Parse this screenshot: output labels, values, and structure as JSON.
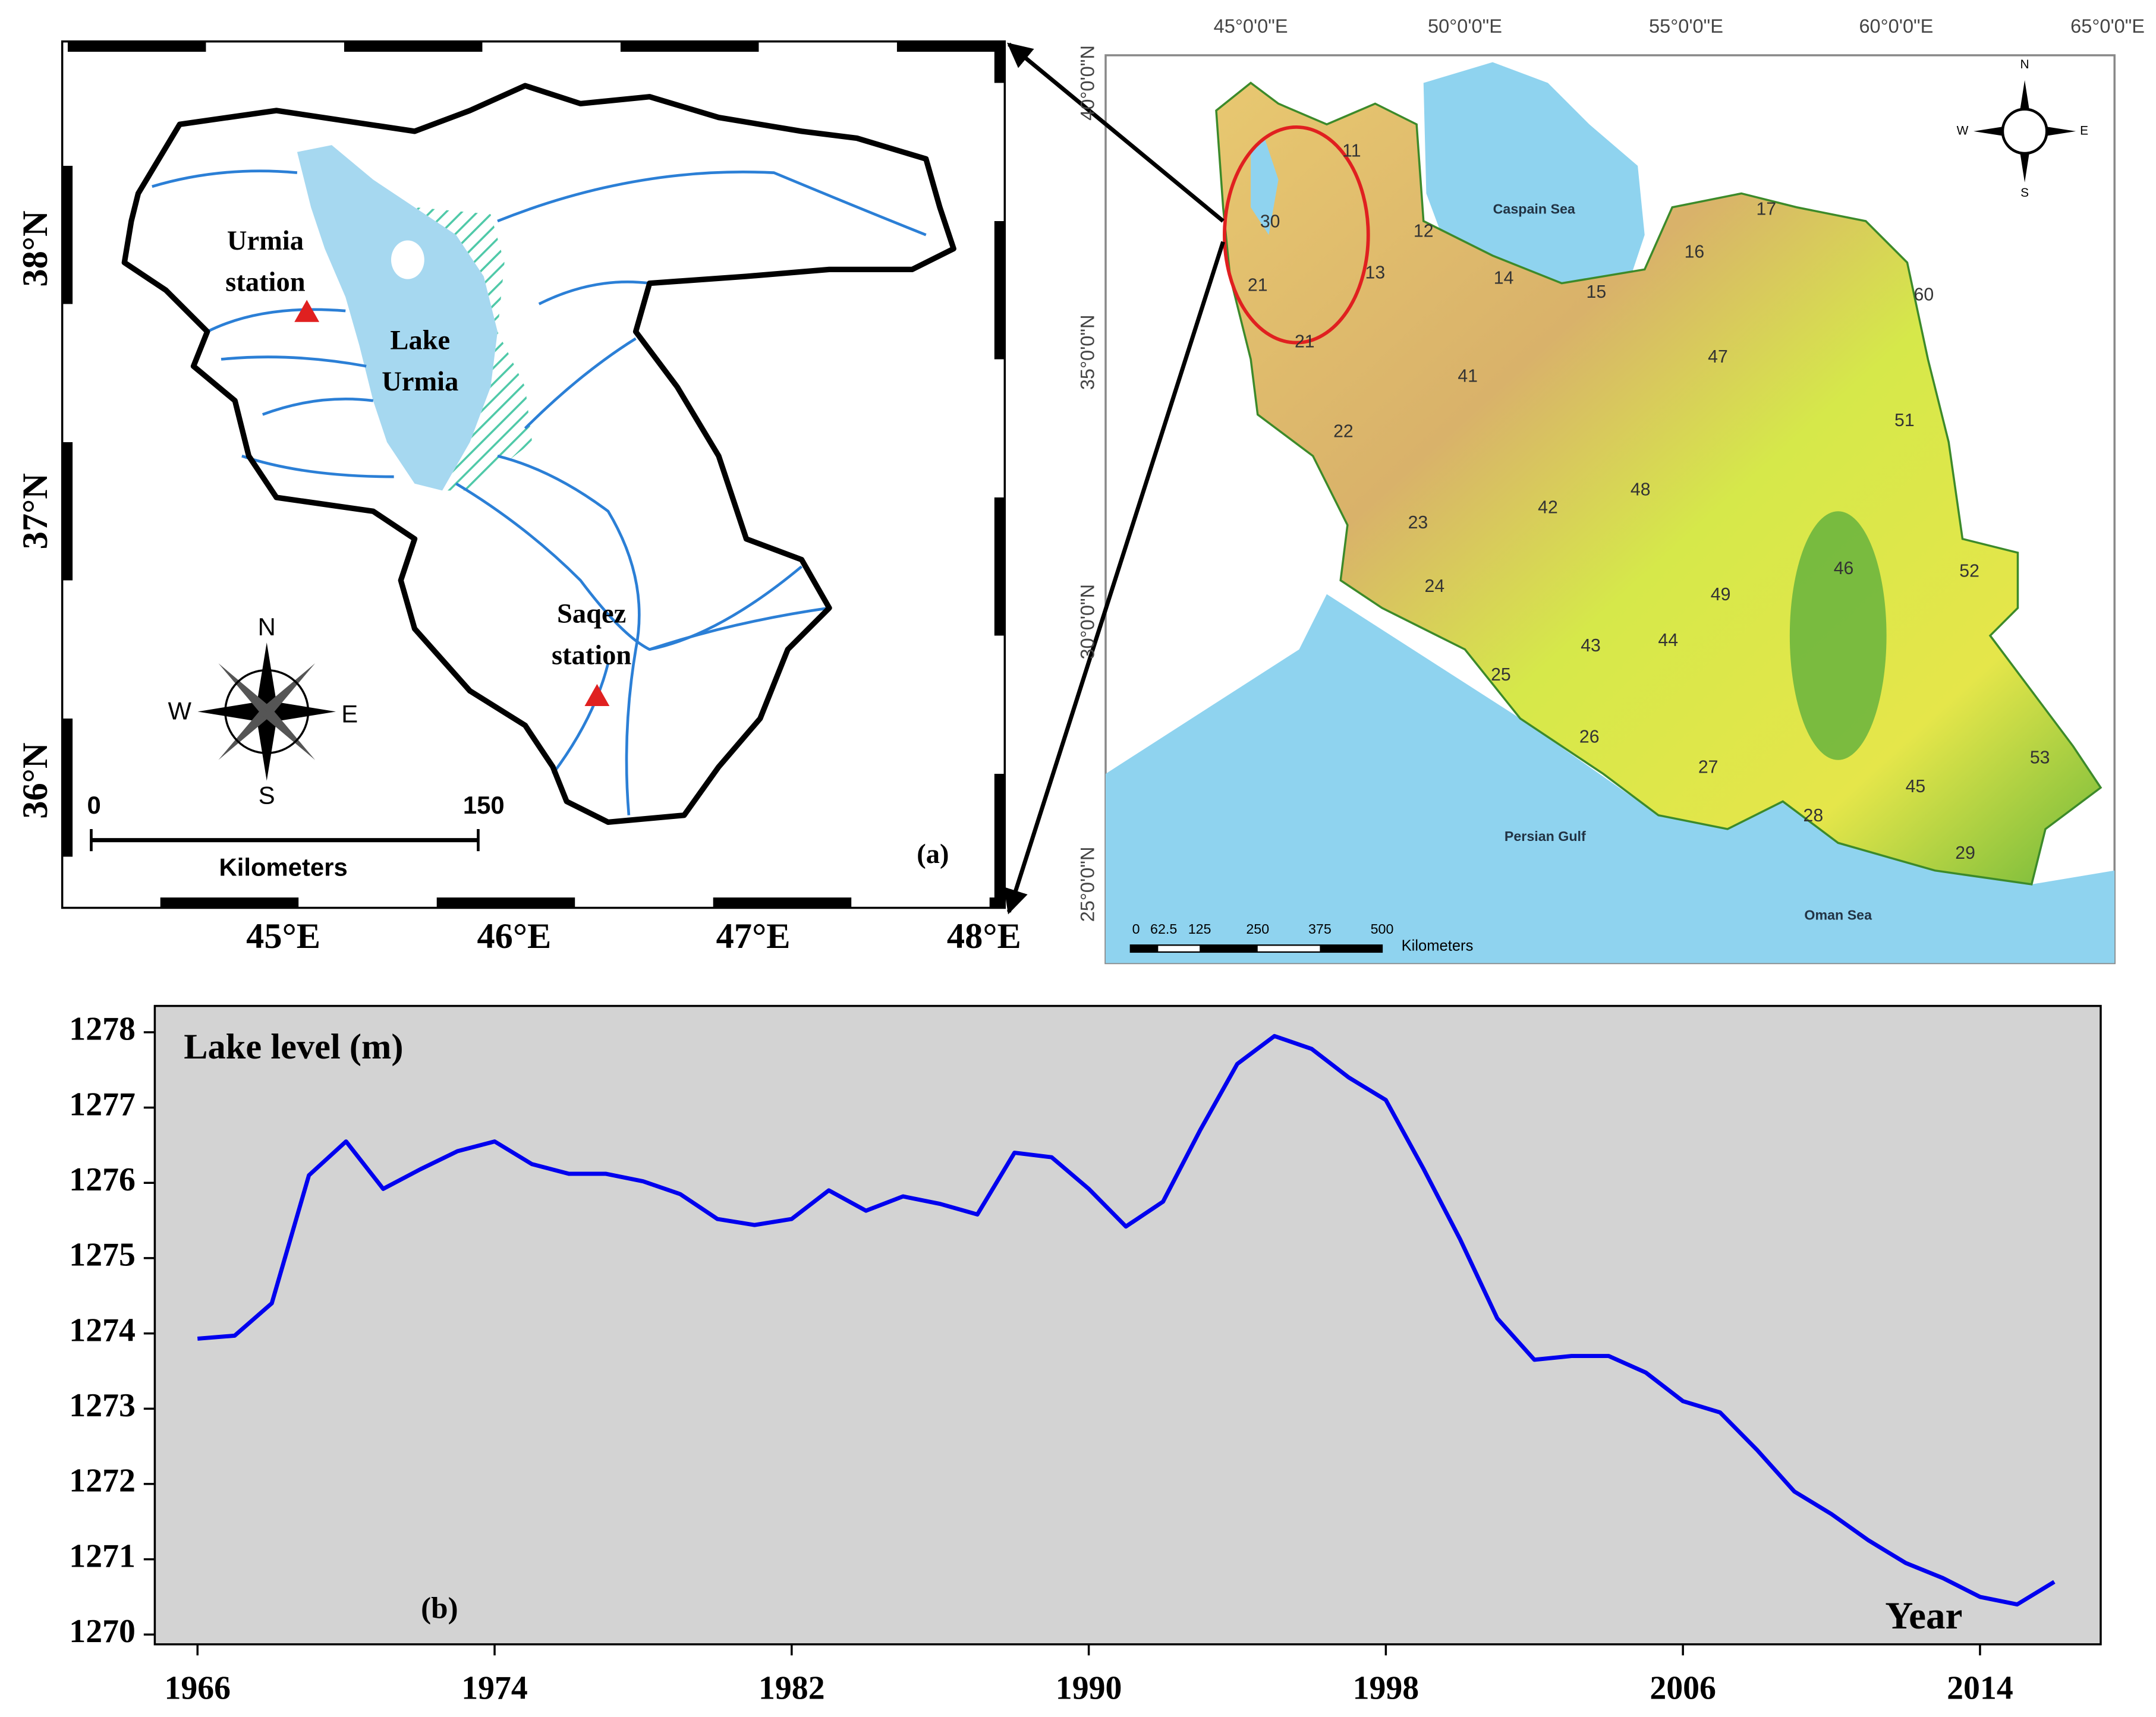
{
  "map_a": {
    "latitude_labels": [
      "38°N",
      "37°N",
      "36°N"
    ],
    "longitude_labels": [
      "45°E",
      "46°E",
      "47°E",
      "48°E"
    ],
    "urmia_station": [
      "Urmia",
      "station"
    ],
    "lake": [
      "Lake",
      "Urmia"
    ],
    "saqez_station": [
      "Saqez",
      "station"
    ],
    "compass": [
      "N",
      "S",
      "W",
      "E"
    ],
    "scale": [
      "0",
      "150",
      "Kilometers"
    ],
    "panel": "(a)"
  },
  "map_b": {
    "longitude_labels": [
      "45°0'0\"E",
      "50°0'0\"E",
      "55°0'0\"E",
      "60°0'0\"E",
      "65°0'0\"E"
    ],
    "latitude_labels": [
      "40°0'0\"N",
      "35°0'0\"N",
      "30°0'0\"N",
      "25°0'0\"N"
    ],
    "seas": [
      "Caspain Sea",
      "Persian Gulf",
      "Oman Sea"
    ],
    "compass": [
      "N",
      "S",
      "W",
      "E"
    ],
    "scale": [
      "0",
      "62.5",
      "125",
      "250",
      "375",
      "500",
      "Kilometers"
    ],
    "regions": [
      "11",
      "12",
      "13",
      "14",
      "15",
      "16",
      "17",
      "21",
      "21",
      "22",
      "23",
      "24",
      "25",
      "26",
      "27",
      "28",
      "29",
      "30",
      "41",
      "42",
      "43",
      "44",
      "45",
      "46",
      "47",
      "48",
      "49",
      "51",
      "52",
      "53",
      "60"
    ]
  },
  "chart_data": {
    "type": "line",
    "ylabel": "Lake level (m)",
    "xlabel": "Year",
    "annotations": [
      "(b)"
    ],
    "color": "#0000ee",
    "x": [
      1966,
      1967,
      1968,
      1969,
      1970,
      1971,
      1972,
      1973,
      1974,
      1975,
      1976,
      1977,
      1978,
      1979,
      1980,
      1981,
      1982,
      1983,
      1984,
      1985,
      1986,
      1987,
      1988,
      1989,
      1990,
      1991,
      1992,
      1993,
      1994,
      1995,
      1996,
      1997,
      1998,
      1999,
      2000,
      2001,
      2002,
      2003,
      2004,
      2005,
      2006,
      2007,
      2008,
      2009,
      2010,
      2011,
      2012,
      2013,
      2014,
      2015,
      2016
    ],
    "values": [
      1273.93,
      1273.97,
      1274.4,
      1276.1,
      1276.55,
      1275.92,
      1276.18,
      1276.42,
      1276.55,
      1276.25,
      1276.12,
      1276.12,
      1276.02,
      1275.85,
      1275.52,
      1275.44,
      1275.52,
      1275.9,
      1275.63,
      1275.82,
      1275.72,
      1275.58,
      1276.4,
      1276.34,
      1275.92,
      1275.42,
      1275.75,
      1276.7,
      1277.58,
      1277.95,
      1277.78,
      1277.4,
      1277.1,
      1276.2,
      1275.25,
      1274.2,
      1273.65,
      1273.7,
      1273.7,
      1273.48,
      1273.1,
      1272.95,
      1272.45,
      1271.9,
      1271.6,
      1271.25,
      1270.95,
      1270.75,
      1270.5,
      1270.4,
      1270.7
    ],
    "xlim": [
      1964.85,
      2017.25
    ],
    "ylim": [
      1269.87,
      1278.35
    ],
    "xticks": [
      1966,
      1974,
      1982,
      1990,
      1998,
      2006,
      2014
    ],
    "yticks": [
      1270,
      1271,
      1272,
      1273,
      1274,
      1275,
      1276,
      1277,
      1278
    ]
  }
}
